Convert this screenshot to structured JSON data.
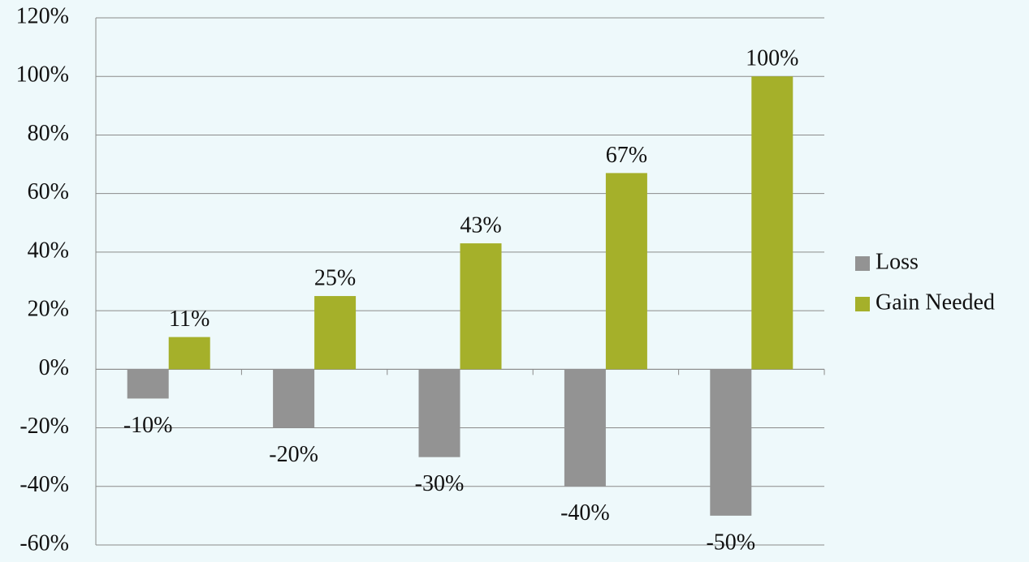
{
  "chart_data": {
    "type": "bar",
    "categories": [
      null,
      null,
      null,
      null,
      null
    ],
    "series": [
      {
        "name": "Loss",
        "color": "#939393",
        "values": [
          -10,
          -20,
          -30,
          -40,
          -50
        ],
        "value_labels": [
          "-10%",
          "-20%",
          "-30%",
          "-40%",
          "-50%"
        ]
      },
      {
        "name": "Gain Needed",
        "color": "#a5b02a",
        "values": [
          11,
          25,
          43,
          67,
          100
        ],
        "value_labels": [
          "11%",
          "25%",
          "43%",
          "67%",
          "100%"
        ]
      }
    ],
    "ylim": [
      -60,
      120
    ],
    "yticks": [
      {
        "value": -60,
        "label": "-60%"
      },
      {
        "value": -40,
        "label": "-40%"
      },
      {
        "value": -20,
        "label": "-20%"
      },
      {
        "value": 0,
        "label": "0%"
      },
      {
        "value": 20,
        "label": "20%"
      },
      {
        "value": 40,
        "label": "40%"
      },
      {
        "value": 60,
        "label": "60%"
      },
      {
        "value": 80,
        "label": "80%"
      },
      {
        "value": 100,
        "label": "100%"
      },
      {
        "value": 120,
        "label": "120%"
      }
    ],
    "grid": true,
    "legend": "right"
  }
}
